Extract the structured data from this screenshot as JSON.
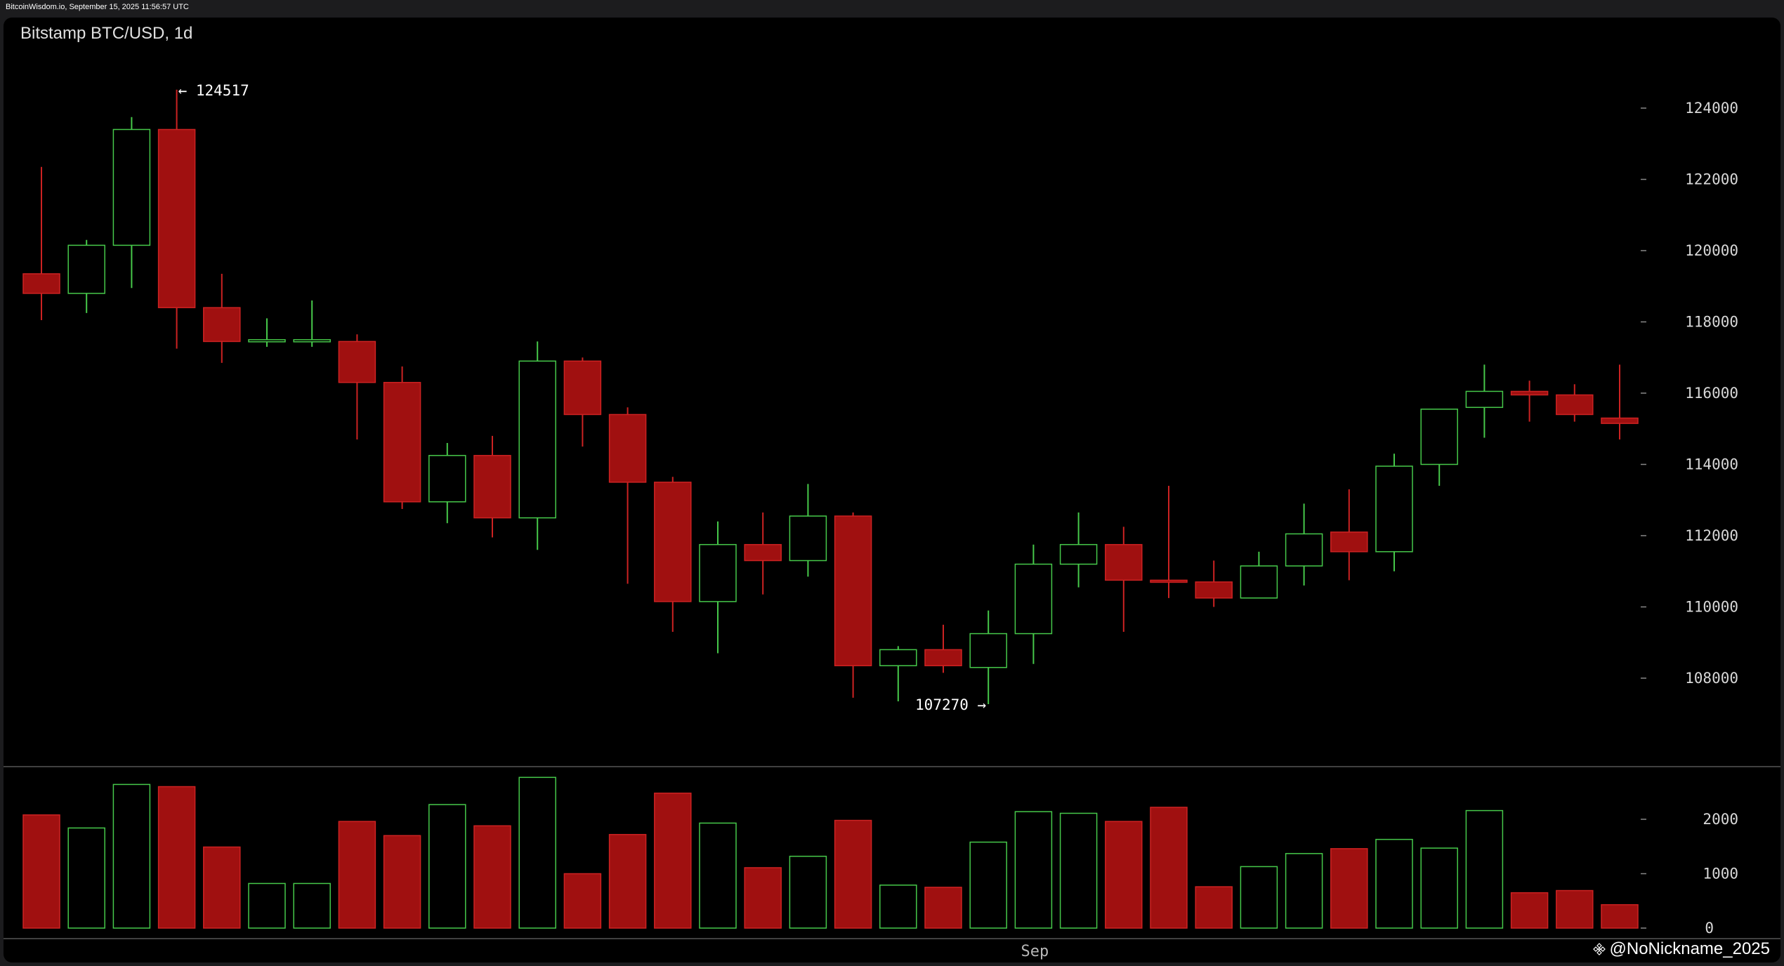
{
  "header": {
    "site_line": "BitcoinWisdom.io, September 15, 2025 11:56:57 UTC",
    "title": "Bitstamp BTC/USD, 1d",
    "watermark": "@NoNickname_2025"
  },
  "colors": {
    "background": "#000000",
    "up": "#46c84a",
    "down": "#a01010",
    "down_border": "#cc2222",
    "axis_text": "#d8d8d8",
    "divider": "#555555"
  },
  "icons": {
    "watermark_logo": "binance-diamond-icon"
  },
  "chart_data": [
    {
      "type": "candlestick",
      "title": "Bitstamp BTC/USD, 1d",
      "ylim": [
        106000,
        126000
      ],
      "yticks": [
        124000,
        122000,
        120000,
        118000,
        116000,
        114000,
        112000,
        110000,
        108000
      ],
      "grid": false,
      "xlabels": [
        {
          "index": 22,
          "label": "Sep"
        }
      ],
      "annotations": [
        {
          "index": 3,
          "value": 124517,
          "label": "← 124517",
          "side": "right"
        },
        {
          "index": 21,
          "value": 107270,
          "label": "107270 →",
          "side": "left"
        }
      ],
      "candles": [
        {
          "o": 119350,
          "h": 122350,
          "l": 118050,
          "c": 118800
        },
        {
          "o": 118800,
          "h": 120300,
          "l": 118250,
          "c": 120150
        },
        {
          "o": 120150,
          "h": 123750,
          "l": 118950,
          "c": 123400
        },
        {
          "o": 123400,
          "h": 124517,
          "l": 117250,
          "c": 118400
        },
        {
          "o": 118400,
          "h": 119350,
          "l": 116850,
          "c": 117450
        },
        {
          "o": 117450,
          "h": 118100,
          "l": 117300,
          "c": 117500
        },
        {
          "o": 117450,
          "h": 118600,
          "l": 117300,
          "c": 117500
        },
        {
          "o": 117450,
          "h": 117650,
          "l": 114700,
          "c": 116300
        },
        {
          "o": 116300,
          "h": 116750,
          "l": 112750,
          "c": 112950
        },
        {
          "o": 112950,
          "h": 114600,
          "l": 112350,
          "c": 114250
        },
        {
          "o": 114250,
          "h": 114800,
          "l": 111950,
          "c": 112500
        },
        {
          "o": 112500,
          "h": 117450,
          "l": 111600,
          "c": 116900
        },
        {
          "o": 116900,
          "h": 117000,
          "l": 114500,
          "c": 115400
        },
        {
          "o": 115400,
          "h": 115600,
          "l": 110650,
          "c": 113500
        },
        {
          "o": 113500,
          "h": 113650,
          "l": 109300,
          "c": 110150
        },
        {
          "o": 110150,
          "h": 112400,
          "l": 108700,
          "c": 111750
        },
        {
          "o": 111750,
          "h": 112650,
          "l": 110350,
          "c": 111300
        },
        {
          "o": 111300,
          "h": 113450,
          "l": 110850,
          "c": 112550
        },
        {
          "o": 112550,
          "h": 112650,
          "l": 107450,
          "c": 108350
        },
        {
          "o": 108350,
          "h": 108900,
          "l": 107350,
          "c": 108800
        },
        {
          "o": 108800,
          "h": 109500,
          "l": 108150,
          "c": 108350
        },
        {
          "o": 108300,
          "h": 109900,
          "l": 107270,
          "c": 109250
        },
        {
          "o": 109250,
          "h": 111750,
          "l": 108400,
          "c": 111200
        },
        {
          "o": 111200,
          "h": 112650,
          "l": 110550,
          "c": 111750
        },
        {
          "o": 111750,
          "h": 112250,
          "l": 109300,
          "c": 110750
        },
        {
          "o": 110750,
          "h": 113400,
          "l": 110250,
          "c": 110700
        },
        {
          "o": 110700,
          "h": 111300,
          "l": 110000,
          "c": 110250
        },
        {
          "o": 110250,
          "h": 111550,
          "l": 110250,
          "c": 111150
        },
        {
          "o": 111150,
          "h": 112900,
          "l": 110600,
          "c": 112050
        },
        {
          "o": 112100,
          "h": 113300,
          "l": 110750,
          "c": 111550
        },
        {
          "o": 111550,
          "h": 114300,
          "l": 111000,
          "c": 113950
        },
        {
          "o": 114000,
          "h": 115550,
          "l": 113400,
          "c": 115550
        },
        {
          "o": 115600,
          "h": 116800,
          "l": 114750,
          "c": 116050
        },
        {
          "o": 116050,
          "h": 116350,
          "l": 115200,
          "c": 115950
        },
        {
          "o": 115950,
          "h": 116250,
          "l": 115200,
          "c": 115400
        },
        {
          "o": 115300,
          "h": 116800,
          "l": 114700,
          "c": 115150
        }
      ]
    },
    {
      "type": "bar",
      "title": "",
      "ylim": [
        0,
        3000
      ],
      "yticks": [
        2000,
        1000,
        0
      ],
      "values": [
        2080,
        1840,
        2640,
        2600,
        1490,
        820,
        820,
        1960,
        1700,
        2270,
        1880,
        2770,
        1000,
        1720,
        2480,
        1930,
        1110,
        1320,
        1980,
        790,
        750,
        1580,
        2140,
        2110,
        1960,
        2220,
        760,
        1130,
        1370,
        1460,
        1630,
        1470,
        2160,
        650,
        690,
        430
      ]
    }
  ]
}
